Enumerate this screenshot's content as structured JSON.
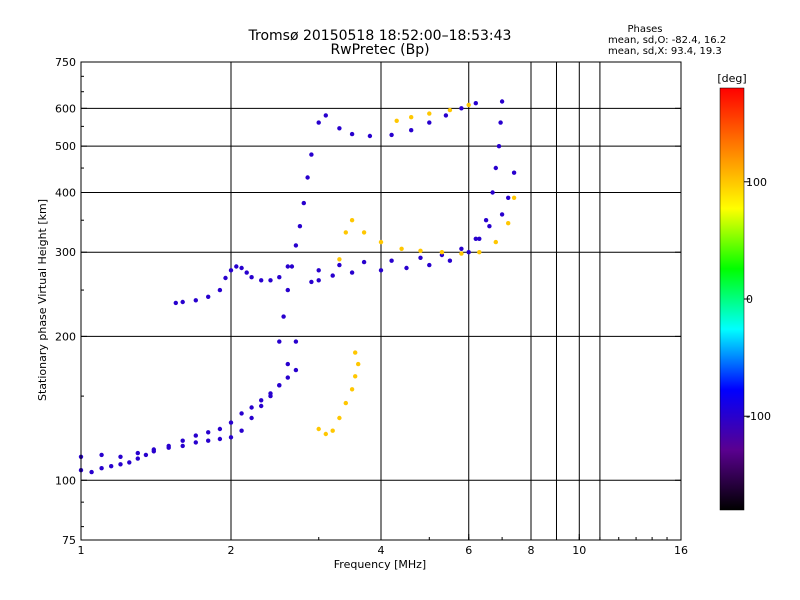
{
  "chart_data": {
    "type": "scatter",
    "title": "Tromsø 20150518 18:52:00–18:53:43",
    "subtitle": "RwPretec (Bp)",
    "xlabel": "Frequency [MHz]",
    "ylabel": "Stationary phase Virtual Height [km]",
    "x_scale": "log",
    "y_scale": "log",
    "xlim": [
      1,
      16
    ],
    "ylim": [
      75,
      750
    ],
    "x_ticks": [
      1,
      2,
      4,
      6,
      8,
      10,
      16
    ],
    "x_tick_labels": [
      "1",
      "2",
      "4",
      "6",
      "8",
      "10",
      "16"
    ],
    "y_ticks": [
      75,
      100,
      200,
      300,
      400,
      500,
      600,
      750
    ],
    "y_tick_labels": [
      "75",
      "100",
      "200",
      "300",
      "400",
      "500",
      "600",
      "750"
    ],
    "grid": true,
    "legend": {
      "title": "Phases",
      "lines": [
        "mean, sd,O: -82.4, 16.2",
        "mean, sd,X:  93.4, 19.3"
      ],
      "position": "top-right"
    },
    "colorbar": {
      "label": "[deg]",
      "range": [
        -180,
        180
      ],
      "ticks": [
        100,
        0,
        -100
      ],
      "tick_labels": [
        "100",
        "0",
        "-100"
      ],
      "colors": [
        "#000000",
        "#5a0090",
        "#0000ff",
        "#00ffff",
        "#00ff00",
        "#ffff00",
        "#ff8000",
        "#ff0000"
      ]
    },
    "series": [
      {
        "points": [
          [
            1.0,
            105,
            -100
          ],
          [
            1.05,
            104,
            -100
          ],
          [
            1.1,
            106,
            -100
          ],
          [
            1.15,
            107,
            -100
          ],
          [
            1.2,
            108,
            -100
          ],
          [
            1.25,
            109,
            -100
          ],
          [
            1.3,
            111,
            -100
          ],
          [
            1.35,
            113,
            -100
          ],
          [
            1.4,
            115,
            -100
          ],
          [
            1.5,
            118,
            -100
          ],
          [
            1.6,
            121,
            -100
          ],
          [
            1.7,
            124,
            -100
          ],
          [
            1.8,
            126,
            -100
          ],
          [
            1.9,
            128,
            -100
          ],
          [
            2.0,
            132,
            -100
          ],
          [
            2.1,
            138,
            -100
          ],
          [
            2.2,
            142,
            -100
          ],
          [
            2.3,
            147,
            -100
          ],
          [
            2.4,
            152,
            -100
          ],
          [
            2.5,
            158,
            -100
          ],
          [
            2.6,
            164,
            -100
          ],
          [
            2.7,
            170,
            -100
          ]
        ]
      },
      {
        "points": [
          [
            1.0,
            112,
            -100
          ],
          [
            1.1,
            113,
            -100
          ],
          [
            1.2,
            112,
            -100
          ],
          [
            1.3,
            114,
            -100
          ],
          [
            1.4,
            116,
            -100
          ],
          [
            1.5,
            117,
            -100
          ],
          [
            1.6,
            118,
            -100
          ],
          [
            1.7,
            120,
            -100
          ],
          [
            1.8,
            121,
            -100
          ],
          [
            1.9,
            122,
            -100
          ],
          [
            2.0,
            123,
            -100
          ],
          [
            2.1,
            127,
            -100
          ],
          [
            2.2,
            135,
            -100
          ],
          [
            2.3,
            143,
            -100
          ],
          [
            2.4,
            150,
            -100
          ],
          [
            2.5,
            158,
            -100
          ],
          [
            2.6,
            175,
            -100
          ],
          [
            2.7,
            195,
            -100
          ]
        ]
      },
      {
        "points": [
          [
            1.55,
            235,
            -100
          ],
          [
            1.6,
            236,
            -100
          ],
          [
            1.7,
            238,
            -100
          ],
          [
            1.8,
            242,
            -100
          ],
          [
            1.9,
            250,
            -100
          ],
          [
            1.95,
            265,
            -100
          ],
          [
            2.0,
            275,
            -100
          ],
          [
            2.05,
            280,
            -100
          ],
          [
            2.1,
            278,
            -100
          ],
          [
            2.15,
            272,
            -100
          ],
          [
            2.2,
            266,
            -100
          ],
          [
            2.3,
            262,
            -100
          ],
          [
            2.4,
            262,
            -100
          ],
          [
            2.5,
            266,
            -100
          ],
          [
            2.6,
            280,
            -100
          ]
        ]
      },
      {
        "points": [
          [
            2.5,
            195,
            -100
          ],
          [
            2.55,
            220,
            -100
          ],
          [
            2.6,
            250,
            -100
          ],
          [
            2.65,
            280,
            -100
          ],
          [
            2.7,
            310,
            -100
          ],
          [
            2.75,
            340,
            -100
          ],
          [
            2.8,
            380,
            -100
          ],
          [
            2.85,
            430,
            -100
          ],
          [
            2.9,
            480,
            -100
          ]
        ]
      },
      {
        "points": [
          [
            2.9,
            260,
            -100
          ],
          [
            3.0,
            262,
            -100
          ],
          [
            3.2,
            268,
            -100
          ],
          [
            3.5,
            272,
            -100
          ],
          [
            4.0,
            275,
            -100
          ],
          [
            4.5,
            278,
            -100
          ],
          [
            5.0,
            282,
            -100
          ],
          [
            5.5,
            288,
            -100
          ],
          [
            6.0,
            300,
            -100
          ],
          [
            6.3,
            320,
            -100
          ],
          [
            6.5,
            350,
            -100
          ],
          [
            6.7,
            400,
            -100
          ],
          [
            6.8,
            450,
            -100
          ],
          [
            6.9,
            500,
            -100
          ],
          [
            6.95,
            560,
            -100
          ],
          [
            7.0,
            620,
            -100
          ]
        ]
      },
      {
        "points": [
          [
            3.0,
            275,
            -100
          ],
          [
            3.3,
            282,
            -100
          ],
          [
            3.7,
            286,
            -100
          ],
          [
            4.2,
            288,
            -100
          ],
          [
            4.8,
            292,
            -100
          ],
          [
            5.3,
            296,
            -100
          ],
          [
            5.8,
            305,
            -100
          ],
          [
            6.2,
            320,
            -100
          ],
          [
            6.6,
            340,
            -100
          ],
          [
            7.0,
            360,
            -100
          ],
          [
            7.2,
            390,
            -100
          ],
          [
            7.4,
            440,
            -100
          ]
        ]
      },
      {
        "points": [
          [
            3.0,
            560,
            -100
          ],
          [
            3.1,
            580,
            -100
          ],
          [
            3.3,
            545,
            -100
          ],
          [
            3.5,
            530,
            -100
          ],
          [
            3.8,
            525,
            -100
          ],
          [
            4.2,
            528,
            -100
          ],
          [
            4.6,
            540,
            -100
          ],
          [
            5.0,
            560,
            -100
          ],
          [
            5.4,
            580,
            -100
          ],
          [
            5.8,
            600,
            -100
          ],
          [
            6.2,
            615,
            -100
          ]
        ]
      },
      {
        "points": [
          [
            3.3,
            290,
            100
          ],
          [
            3.4,
            330,
            100
          ],
          [
            3.5,
            350,
            100
          ],
          [
            3.7,
            330,
            100
          ],
          [
            4.0,
            315,
            100
          ],
          [
            4.4,
            305,
            100
          ],
          [
            4.8,
            302,
            100
          ],
          [
            5.3,
            300,
            100
          ],
          [
            5.8,
            298,
            100
          ],
          [
            6.3,
            300,
            100
          ],
          [
            6.8,
            315,
            100
          ],
          [
            7.2,
            345,
            100
          ],
          [
            7.4,
            390,
            100
          ]
        ]
      },
      {
        "points": [
          [
            3.0,
            128,
            100
          ],
          [
            3.1,
            125,
            100
          ],
          [
            3.2,
            127,
            100
          ],
          [
            3.3,
            135,
            100
          ],
          [
            3.4,
            145,
            100
          ],
          [
            3.5,
            155,
            100
          ],
          [
            3.55,
            165,
            100
          ],
          [
            3.6,
            175,
            100
          ],
          [
            3.55,
            185,
            100
          ]
        ]
      },
      {
        "points": [
          [
            4.3,
            565,
            100
          ],
          [
            4.6,
            575,
            100
          ],
          [
            5.0,
            585,
            100
          ],
          [
            5.5,
            595,
            100
          ],
          [
            6.0,
            610,
            100
          ]
        ]
      }
    ]
  }
}
